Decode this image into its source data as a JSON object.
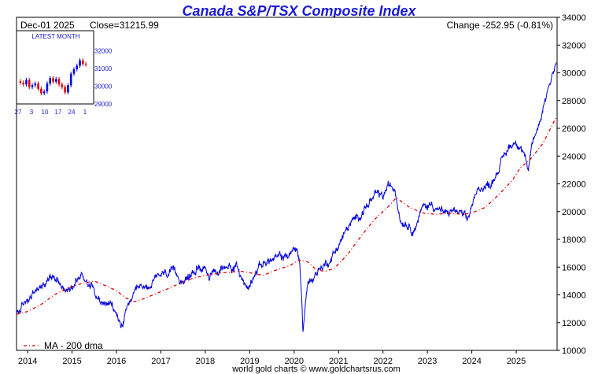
{
  "chart_data": {
    "type": "line",
    "title": "Canada S&P/TSX Composite Index",
    "header": {
      "date": "Dec-01  2025",
      "close": "Close=31215.99",
      "change": "Change -252.95 (-0.81%)"
    },
    "y_ticks": [
      10000,
      12000,
      14000,
      16000,
      18000,
      20000,
      22000,
      24000,
      26000,
      28000,
      30000,
      32000,
      34000
    ],
    "ylim": [
      10000,
      34000
    ],
    "xlim": [
      2013.75,
      2025.92
    ],
    "x_ticks": [
      {
        "label": "2014",
        "value": 2014
      },
      {
        "label": "2015",
        "value": 2015
      },
      {
        "label": "2016",
        "value": 2016
      },
      {
        "label": "2017",
        "value": 2017
      },
      {
        "label": "2018",
        "value": 2018
      },
      {
        "label": "2019",
        "value": 2019
      },
      {
        "label": "2020",
        "value": 2020
      },
      {
        "label": "2021",
        "value": 2021
      },
      {
        "label": "2022",
        "value": 2022
      },
      {
        "label": "2023",
        "value": 2023
      },
      {
        "label": "2024",
        "value": 2024
      },
      {
        "label": "2025",
        "value": 2025
      }
    ],
    "series": [
      {
        "key": "price",
        "color": "#0000dd",
        "x": [
          2013.75,
          2013.9,
          2014.0,
          2014.2,
          2014.4,
          2014.55,
          2014.65,
          2014.75,
          2014.85,
          2015.0,
          2015.2,
          2015.3,
          2015.5,
          2015.6,
          2015.7,
          2015.8,
          2015.9,
          2016.05,
          2016.1,
          2016.3,
          2016.5,
          2016.7,
          2016.9,
          2017.0,
          2017.2,
          2017.4,
          2017.6,
          2017.8,
          2018.0,
          2018.1,
          2018.3,
          2018.5,
          2018.7,
          2018.85,
          2018.97,
          2019.1,
          2019.3,
          2019.5,
          2019.7,
          2019.9,
          2020.05,
          2020.12,
          2020.17,
          2020.2,
          2020.3,
          2020.45,
          2020.6,
          2020.75,
          2020.9,
          2021.0,
          2021.2,
          2021.4,
          2021.6,
          2021.8,
          2021.9,
          2022.0,
          2022.1,
          2022.27,
          2022.4,
          2022.5,
          2022.6,
          2022.7,
          2022.8,
          2022.9,
          2023.0,
          2023.1,
          2023.2,
          2023.4,
          2023.6,
          2023.8,
          2023.9,
          2024.0,
          2024.2,
          2024.4,
          2024.55,
          2024.7,
          2024.85,
          2025.0,
          2025.1,
          2025.2,
          2025.27,
          2025.35,
          2025.5,
          2025.6,
          2025.7,
          2025.8,
          2025.9
        ],
        "y": [
          12600,
          13200,
          13700,
          14300,
          14900,
          15400,
          15300,
          15000,
          14200,
          14800,
          15400,
          15100,
          14500,
          13800,
          13200,
          13500,
          13100,
          12300,
          11600,
          13500,
          14300,
          14600,
          15100,
          15400,
          15600,
          15300,
          15100,
          15900,
          16100,
          15400,
          15600,
          16200,
          16000,
          15000,
          14400,
          15700,
          16300,
          16500,
          16700,
          16900,
          17400,
          16500,
          13800,
          11200,
          14800,
          15400,
          16000,
          16300,
          17000,
          17600,
          18800,
          19500,
          20300,
          21000,
          21200,
          21000,
          21800,
          21700,
          19400,
          19300,
          19000,
          18700,
          19600,
          20300,
          20400,
          20600,
          20300,
          19800,
          20100,
          19700,
          19200,
          20500,
          21800,
          21900,
          22800,
          23800,
          24700,
          25100,
          24800,
          24000,
          22500,
          24800,
          26200,
          27500,
          28700,
          29800,
          30800
        ]
      },
      {
        "key": "ma",
        "name": "MA - 200 dma",
        "color": "#dd0000",
        "x": [
          2013.75,
          2014.0,
          2014.3,
          2014.6,
          2014.9,
          2015.2,
          2015.5,
          2015.8,
          2016.0,
          2016.2,
          2016.4,
          2016.6,
          2016.9,
          2017.2,
          2017.6,
          2018.0,
          2018.4,
          2018.8,
          2019.0,
          2019.3,
          2019.6,
          2019.9,
          2020.1,
          2020.3,
          2020.5,
          2020.7,
          2020.9,
          2021.2,
          2021.5,
          2021.8,
          2022.1,
          2022.3,
          2022.6,
          2022.9,
          2023.2,
          2023.5,
          2023.8,
          2024.0,
          2024.3,
          2024.6,
          2024.9,
          2025.1,
          2025.3,
          2025.6,
          2025.9
        ],
        "y": [
          12600,
          12800,
          13300,
          14000,
          14500,
          14800,
          15000,
          14600,
          14300,
          13800,
          13500,
          13700,
          14100,
          14500,
          15100,
          15400,
          15600,
          15700,
          15600,
          15400,
          15800,
          16100,
          16500,
          16400,
          15800,
          15700,
          15900,
          16900,
          18200,
          19400,
          20300,
          21000,
          20300,
          19900,
          19800,
          19900,
          19800,
          19900,
          20300,
          21200,
          22200,
          23200,
          23700,
          24900,
          26800
        ]
      }
    ],
    "legend": {
      "label": "MA - 200 dma",
      "placement": "bottom-left"
    },
    "inset": {
      "title": "LATEST MONTH",
      "y_ticks": [
        29000,
        30000,
        31000,
        32000
      ],
      "ylim": [
        29000,
        32500
      ],
      "x_ticks": [
        "27",
        "3",
        "10",
        "17",
        "24",
        "1"
      ],
      "closes": [
        30200,
        30100,
        30350,
        29950,
        30050,
        30150,
        29850,
        29600,
        29700,
        30150,
        30450,
        30250,
        30400,
        30100,
        29950,
        29650,
        30050,
        30700,
        30950,
        31150,
        31450,
        31250,
        31215
      ]
    },
    "footer": "world gold charts © www.goldchartsrus.com"
  }
}
